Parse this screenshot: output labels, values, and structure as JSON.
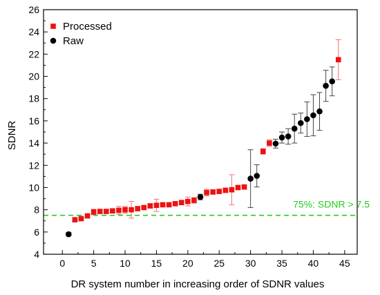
{
  "chart_data": {
    "type": "scatter",
    "xlabel": "DR system number in increasing order of SDNR values",
    "ylabel": "SDNR",
    "xlim": [
      -3,
      47
    ],
    "ylim": [
      4,
      26
    ],
    "x_ticks": [
      0,
      5,
      10,
      15,
      20,
      25,
      30,
      35,
      40,
      45
    ],
    "y_ticks": [
      4,
      6,
      8,
      10,
      12,
      14,
      16,
      18,
      20,
      22,
      24,
      26
    ],
    "legend_position": "top-left",
    "threshold": {
      "value": 7.5,
      "label": "75%: SDNR > 7.5",
      "color": "#22cc22"
    },
    "series": [
      {
        "name": "Processed",
        "marker": "square",
        "color": "#ee1111",
        "error_color": "#f07070",
        "points": [
          {
            "x": 2,
            "y": 7.1,
            "err": 0.15
          },
          {
            "x": 3,
            "y": 7.2,
            "err": 0.1
          },
          {
            "x": 4,
            "y": 7.45,
            "err": 0.15
          },
          {
            "x": 5,
            "y": 7.8,
            "err": 0.25
          },
          {
            "x": 6,
            "y": 7.85,
            "err": 0.15
          },
          {
            "x": 7,
            "y": 7.85,
            "err": 0.15
          },
          {
            "x": 8,
            "y": 7.9,
            "err": 0.15
          },
          {
            "x": 9,
            "y": 7.95,
            "err": 0.35
          },
          {
            "x": 10,
            "y": 8.0,
            "err": 0.3
          },
          {
            "x": 11,
            "y": 8.0,
            "err": 0.75
          },
          {
            "x": 12,
            "y": 8.1,
            "err": 0.2
          },
          {
            "x": 13,
            "y": 8.2,
            "err": 0.15
          },
          {
            "x": 14,
            "y": 8.35,
            "err": 0.2
          },
          {
            "x": 15,
            "y": 8.4,
            "err": 0.55
          },
          {
            "x": 16,
            "y": 8.45,
            "err": 0.15
          },
          {
            "x": 17,
            "y": 8.45,
            "err": 0.15
          },
          {
            "x": 18,
            "y": 8.55,
            "err": 0.2
          },
          {
            "x": 19,
            "y": 8.65,
            "err": 0.2
          },
          {
            "x": 20,
            "y": 8.75,
            "err": 0.4
          },
          {
            "x": 21,
            "y": 8.85,
            "err": 0.25
          },
          {
            "x": 23,
            "y": 9.55,
            "err": 0.3
          },
          {
            "x": 24,
            "y": 9.6,
            "err": 0.2
          },
          {
            "x": 25,
            "y": 9.65,
            "err": 0.2
          },
          {
            "x": 26,
            "y": 9.75,
            "err": 0.2
          },
          {
            "x": 27,
            "y": 9.8,
            "err": 1.35
          },
          {
            "x": 28,
            "y": 10.0,
            "err": 0.2
          },
          {
            "x": 29,
            "y": 10.05,
            "err": 0.2
          },
          {
            "x": 32,
            "y": 13.25,
            "err": 0.25
          },
          {
            "x": 33,
            "y": 14.0,
            "err": 0.3
          },
          {
            "x": 44,
            "y": 21.5,
            "err": 1.8
          }
        ]
      },
      {
        "name": "Raw",
        "marker": "circle",
        "color": "#000000",
        "error_color": "#444444",
        "points": [
          {
            "x": 1,
            "y": 5.8,
            "err": 0.15
          },
          {
            "x": 22,
            "y": 9.15,
            "err": 0.25
          },
          {
            "x": 30,
            "y": 10.8,
            "err": 2.6
          },
          {
            "x": 31,
            "y": 11.05,
            "err": 1.0
          },
          {
            "x": 34,
            "y": 13.95,
            "err": 0.4
          },
          {
            "x": 35,
            "y": 14.5,
            "err": 0.5
          },
          {
            "x": 36,
            "y": 14.6,
            "err": 0.7
          },
          {
            "x": 37,
            "y": 15.3,
            "err": 1.3
          },
          {
            "x": 38,
            "y": 15.8,
            "err": 0.9
          },
          {
            "x": 39,
            "y": 16.15,
            "err": 1.55
          },
          {
            "x": 40,
            "y": 16.5,
            "err": 1.85
          },
          {
            "x": 41,
            "y": 16.85,
            "err": 1.7
          },
          {
            "x": 42,
            "y": 19.15,
            "err": 1.4
          },
          {
            "x": 43,
            "y": 19.55,
            "err": 1.3
          }
        ]
      }
    ]
  }
}
